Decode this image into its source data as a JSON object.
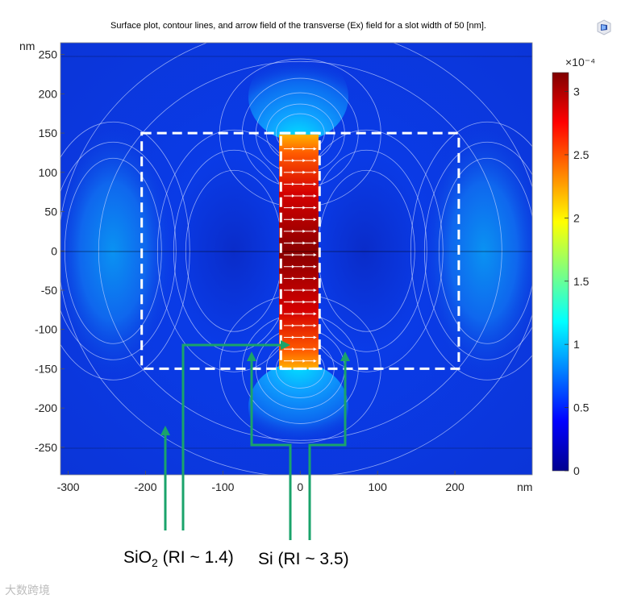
{
  "chart_data": {
    "type": "heatmap",
    "title": "Surface plot, contour lines, and arrow field of the transverse (Ex) field for a slot width of 50 [nm].",
    "xlabel": "nm",
    "ylabel": "nm",
    "xlim": [
      -310,
      300
    ],
    "ylim": [
      -285,
      265
    ],
    "x_ticks": [
      -300,
      -200,
      -100,
      0,
      100,
      200
    ],
    "y_ticks": [
      250,
      200,
      150,
      100,
      50,
      0,
      -50,
      -100,
      -150,
      -200,
      -250
    ],
    "colorbar": {
      "multiplier": "×10⁻⁴",
      "min": 0,
      "max": 3.15,
      "ticks": [
        0,
        0.5,
        1,
        1.5,
        2,
        2.5,
        3
      ],
      "colormap": "jet"
    },
    "structures": [
      {
        "name": "waveguide_box",
        "x": [
          -205,
          205
        ],
        "y": [
          -150,
          150
        ]
      },
      {
        "name": "slot",
        "x": [
          -25,
          25
        ],
        "y": [
          -150,
          150
        ]
      }
    ],
    "annotations": [
      {
        "text_main": "SiO",
        "sub": "2",
        "text_rest": " (RI ~ 1.4)"
      },
      {
        "text_main": "Si (RI ~ 3.5)"
      }
    ],
    "annotation_color": "#1aa36b"
  },
  "watermark_text": "大数跨境",
  "logo_icon": "comsol-logo-icon"
}
